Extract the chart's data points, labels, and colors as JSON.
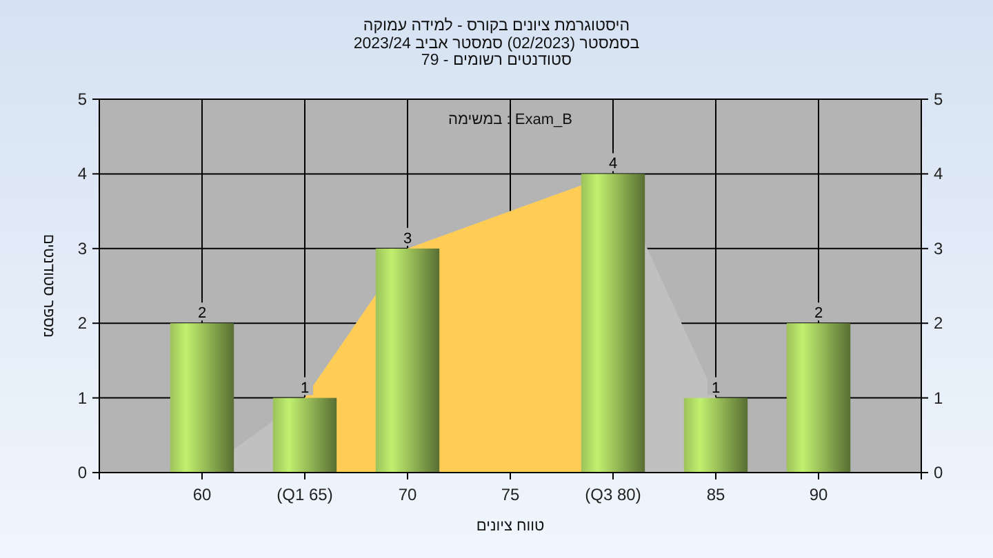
{
  "chart_data": {
    "type": "bar",
    "title": "היסטוגרמת ציונים בקורס - למידה עמוקה",
    "subtitle": "בסמסטר  (02/2023)  סמסטר אביב 2023/24\nסטודנטים רשומים - 79",
    "xlabel": "טווח ציונים",
    "ylabel": "מספר סטודנטים",
    "annotations": [
      "במשימה : Exam_B"
    ],
    "xlim": [
      55,
      95
    ],
    "xticks": [
      60,
      {
        "value": 65,
        "label": "(Q1 65)"
      },
      70,
      75,
      {
        "value": 80,
        "label": "(Q3 80)"
      },
      85,
      90
    ],
    "ylim": [
      0,
      5
    ],
    "yticks": [
      0,
      1,
      2,
      3,
      4,
      5
    ],
    "y2lim": [
      0,
      5
    ],
    "y2ticks": [
      0,
      1,
      2,
      3,
      4,
      5
    ],
    "grid": true,
    "series": [
      {
        "type": "area",
        "color": "#c0c0c0",
        "x": [
          60,
          65,
          70,
          80,
          85
        ],
        "values": [
          0,
          1,
          3,
          4,
          1
        ]
      },
      {
        "type": "area",
        "color": "#ffcc55",
        "x": [
          65,
          70,
          80
        ],
        "values": [
          1,
          3,
          4
        ]
      },
      {
        "color": "#9cc25a",
        "x": [
          60,
          65,
          70,
          80,
          85,
          90
        ],
        "values": [
          2,
          1,
          3,
          4,
          1,
          2
        ],
        "value_labels": [
          "2",
          "1",
          "3",
          "4",
          "1",
          "2"
        ]
      }
    ]
  }
}
